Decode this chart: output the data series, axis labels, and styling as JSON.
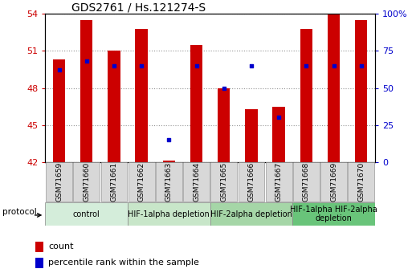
{
  "title": "GDS2761 / Hs.121274-S",
  "samples": [
    "GSM71659",
    "GSM71660",
    "GSM71661",
    "GSM71662",
    "GSM71663",
    "GSM71664",
    "GSM71665",
    "GSM71666",
    "GSM71667",
    "GSM71668",
    "GSM71669",
    "GSM71670"
  ],
  "count_values": [
    50.3,
    53.5,
    51.0,
    52.8,
    42.1,
    51.5,
    48.0,
    46.3,
    46.5,
    52.8,
    54.0,
    53.5
  ],
  "percentile_values": [
    62,
    68,
    65,
    65,
    15,
    65,
    50,
    65,
    30,
    65,
    65,
    65
  ],
  "ylim": [
    42,
    54
  ],
  "yticks": [
    42,
    45,
    48,
    51,
    54
  ],
  "y2lim": [
    0,
    100
  ],
  "y2ticks": [
    0,
    25,
    50,
    75,
    100
  ],
  "bar_color": "#cc0000",
  "dot_color": "#0000cc",
  "bar_bottom": 42,
  "protocols": [
    {
      "label": "control",
      "start": 0,
      "end": 3,
      "color": "#d4edda"
    },
    {
      "label": "HIF-1alpha depletion",
      "start": 3,
      "end": 6,
      "color": "#c8e6c9"
    },
    {
      "label": "HIF-2alpha depletion",
      "start": 6,
      "end": 9,
      "color": "#a5d6a7"
    },
    {
      "label": "HIF-1alpha HIF-2alpha\ndepletion",
      "start": 9,
      "end": 12,
      "color": "#69c47a"
    }
  ],
  "legend_count_label": "count",
  "legend_percentile_label": "percentile rank within the sample",
  "protocol_label": "protocol",
  "left_tick_color": "#cc0000",
  "right_tick_color": "#0000cc",
  "title_color": "#000000",
  "bar_width": 0.45,
  "sample_label_prefix": "GSM7"
}
